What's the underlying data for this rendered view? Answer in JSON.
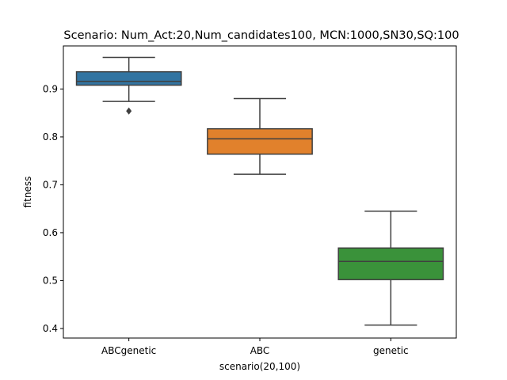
{
  "chart_data": {
    "type": "boxplot",
    "title": "Scenario: Num_Act:20,Num_candidates100, MCN:1000,SN30,SQ:100",
    "xlabel": "scenario(20,100)",
    "ylabel": "fitness",
    "ylim": [
      0.38,
      0.99
    ],
    "yticks": [
      0.4,
      0.5,
      0.6,
      0.7,
      0.8,
      0.9
    ],
    "ytick_labels": [
      "0.4",
      "0.5",
      "0.6",
      "0.7",
      "0.8",
      "0.9"
    ],
    "categories": [
      "ABCgenetic",
      "ABC",
      "genetic"
    ],
    "boxes": [
      {
        "name": "ABCgenetic",
        "whisker_low": 0.874,
        "q1": 0.908,
        "median": 0.916,
        "q3": 0.936,
        "whisker_high": 0.966,
        "outliers": [
          0.854
        ],
        "color": "#3274a1"
      },
      {
        "name": "ABC",
        "whisker_low": 0.722,
        "q1": 0.764,
        "median": 0.796,
        "q3": 0.817,
        "whisker_high": 0.88,
        "outliers": [],
        "color": "#e1812c"
      },
      {
        "name": "genetic",
        "whisker_low": 0.407,
        "q1": 0.502,
        "median": 0.54,
        "q3": 0.568,
        "whisker_high": 0.645,
        "outliers": [],
        "color": "#3a923a"
      }
    ],
    "grid": false,
    "legend": "none"
  }
}
